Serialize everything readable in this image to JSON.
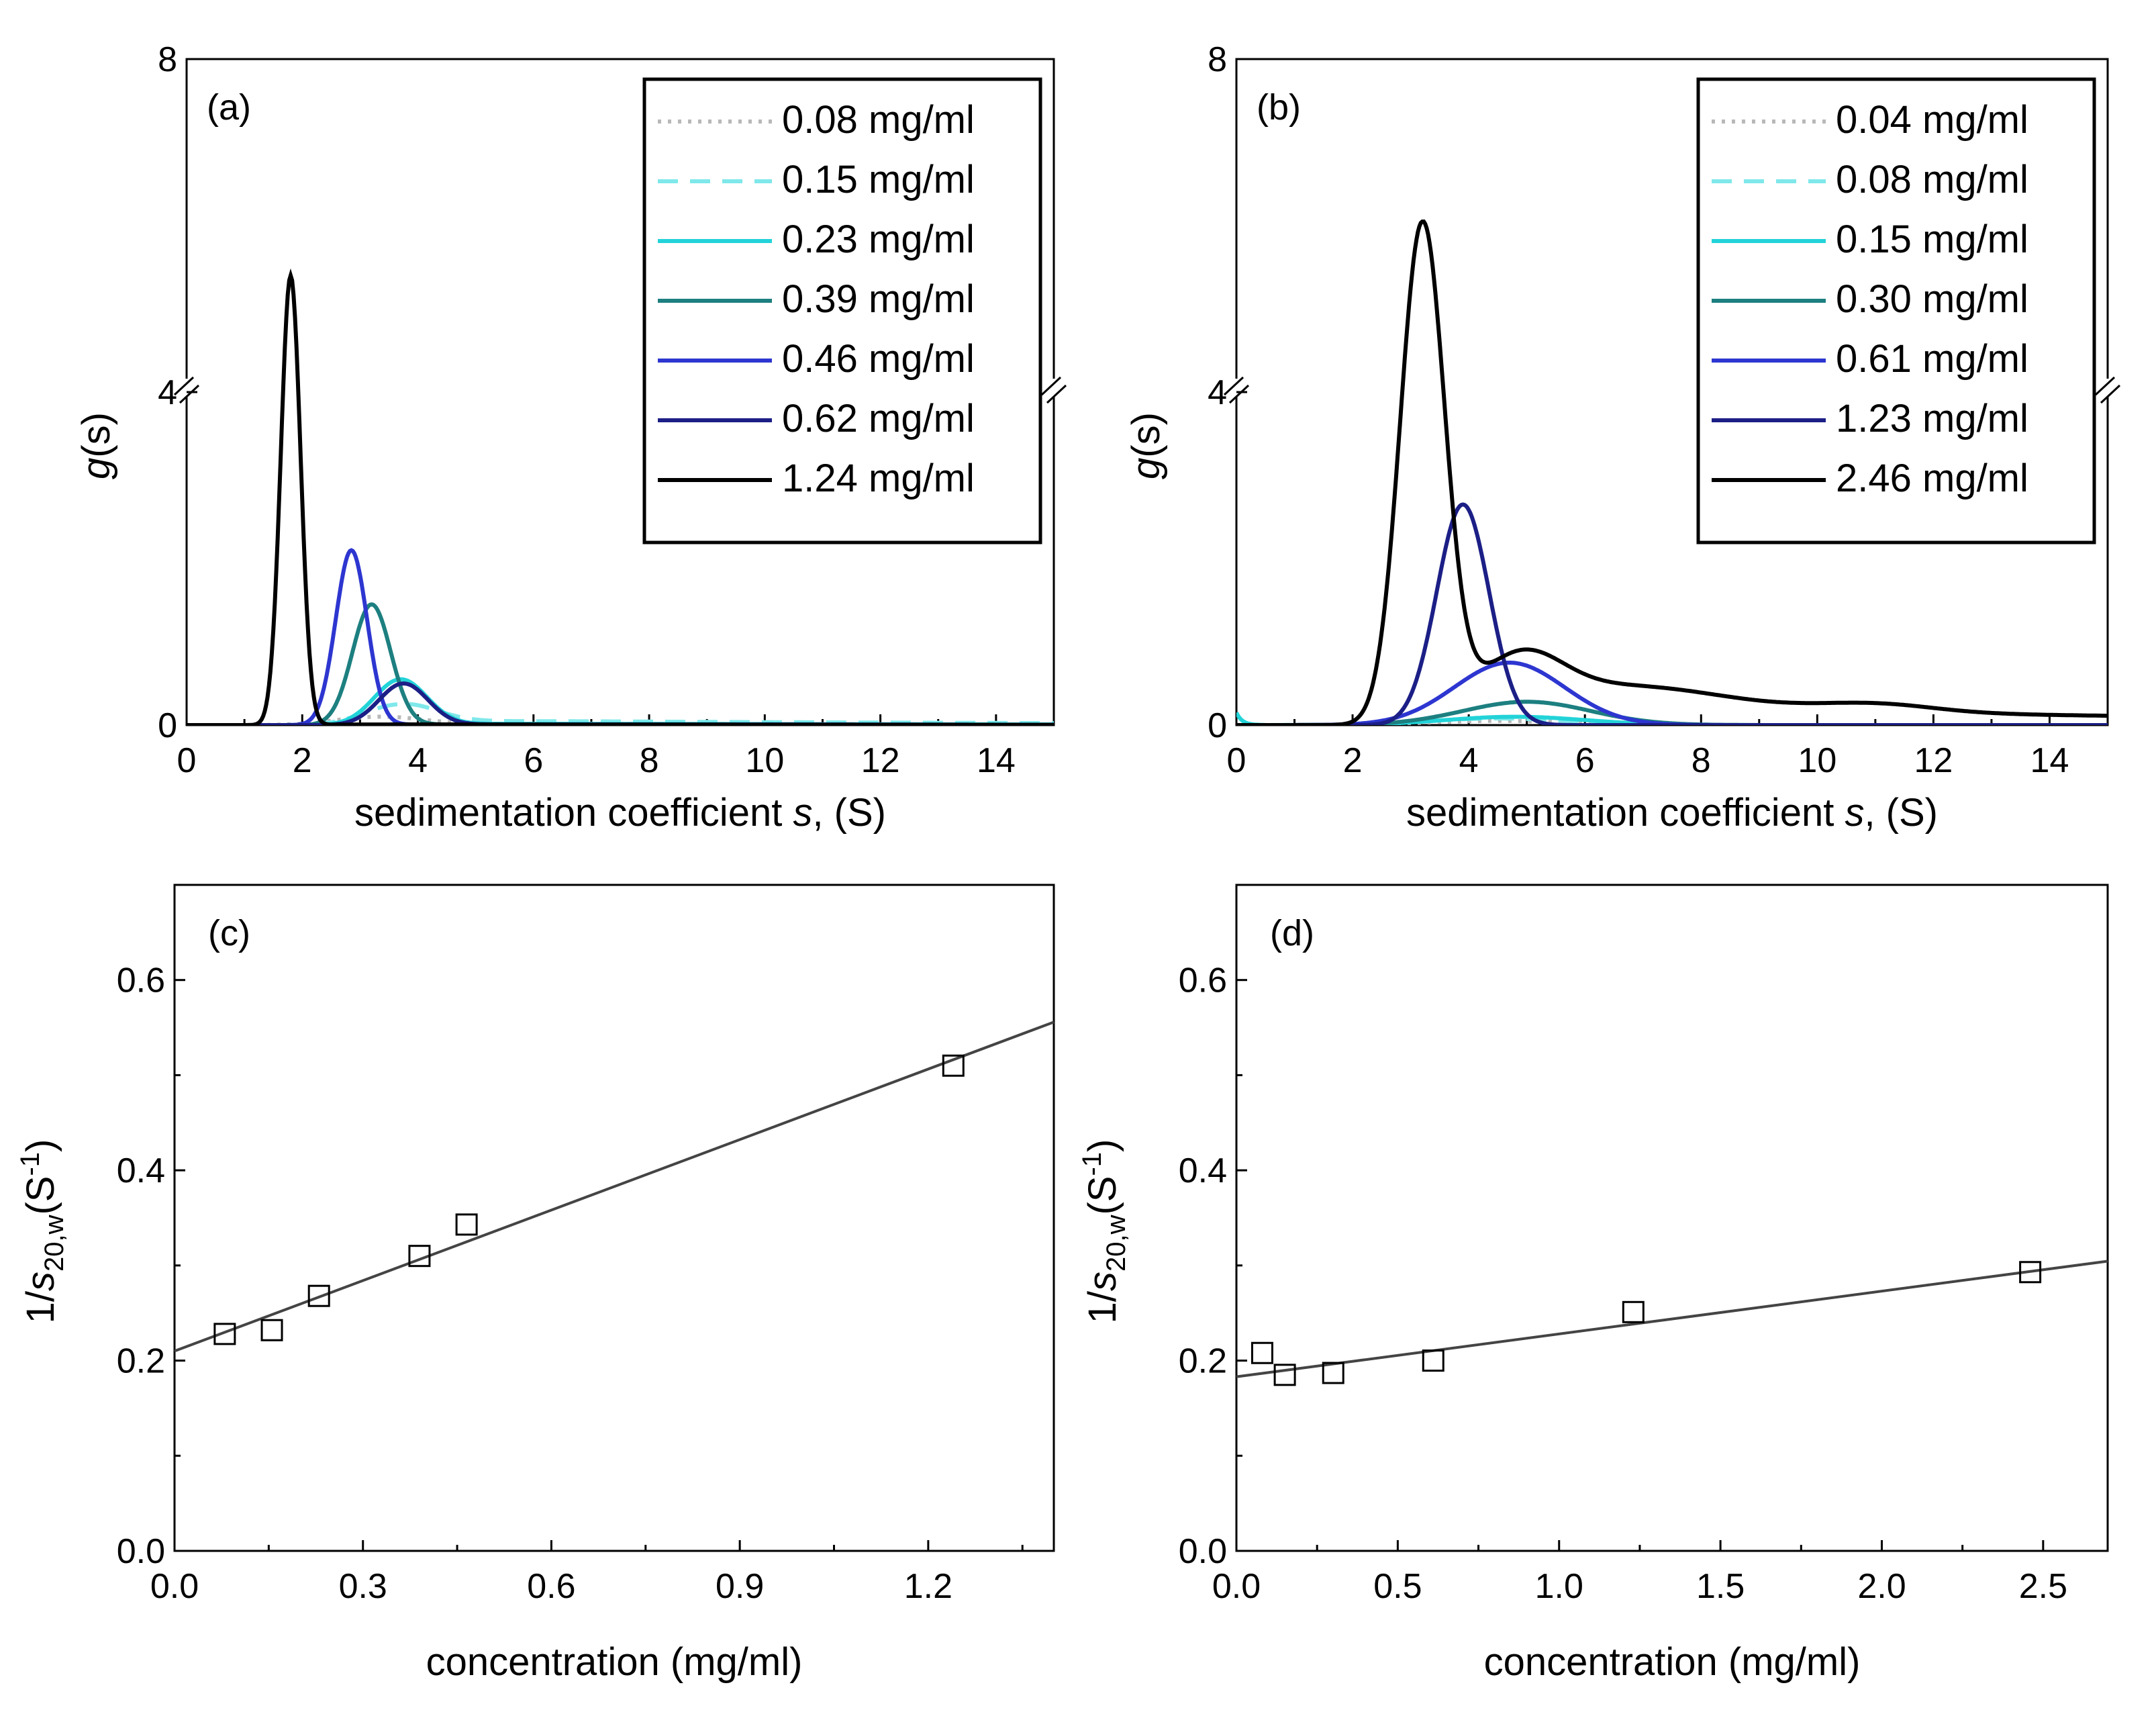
{
  "colors": {
    "c1": "#b8b8b8",
    "c2": "#7fe8ea",
    "c3": "#22d3d8",
    "c4": "#1d7f80",
    "c5": "#2d36d0",
    "c6": "#1c1f86",
    "c7": "#000000",
    "fit": "#444444"
  },
  "chart_data": [
    {
      "id": "a",
      "type": "line",
      "panel_label": "(a)",
      "xlabel_prefix": "sedimentation coefficient ",
      "xlabel_var": "s",
      "xlabel_suffix": ", (S)",
      "ylabel_var": "g",
      "ylabel_suffix": "(s)",
      "xlim": [
        0,
        15
      ],
      "ylim": [
        0,
        8
      ],
      "axis_break": 4,
      "xticks": [
        0,
        2,
        4,
        6,
        8,
        10,
        12,
        14
      ],
      "yticks": [
        0,
        4,
        8
      ],
      "legend_position": "top-right",
      "series": [
        {
          "name": "0.08 mg/ml",
          "style": "dotted",
          "color": "#b8b8b8",
          "peak": 3.3,
          "width": 0.7,
          "height": 0.1,
          "tail": 0.02
        },
        {
          "name": "0.15 mg/ml",
          "style": "dashed",
          "color": "#7fe8ea",
          "peak": 3.7,
          "width": 0.6,
          "height": 0.25,
          "tail": 0.06
        },
        {
          "name": "0.23 mg/ml",
          "style": "solid",
          "color": "#22d3d8",
          "peak": 3.7,
          "width": 0.45,
          "height": 0.55,
          "tail": 0.02
        },
        {
          "name": "0.39 mg/ml",
          "style": "solid",
          "color": "#1d7f80",
          "peak": 3.2,
          "width": 0.33,
          "height": 1.45,
          "tail": 0.01
        },
        {
          "name": "0.46 mg/ml",
          "style": "solid",
          "color": "#2d36d0",
          "peak": 2.85,
          "width": 0.27,
          "height": 2.1,
          "tail": 0.01
        },
        {
          "name": "0.62 mg/ml",
          "style": "solid",
          "color": "#1c1f86",
          "peak": 3.75,
          "width": 0.42,
          "height": 0.5,
          "tail": 0.01
        },
        {
          "name": "1.24 mg/ml",
          "style": "solid",
          "color": "#000000",
          "peak": 1.8,
          "width": 0.17,
          "height": 5.4,
          "tail": 0.01
        }
      ]
    },
    {
      "id": "b",
      "type": "line",
      "panel_label": "(b)",
      "xlabel_prefix": "sedimentation coefficient ",
      "xlabel_var": "s",
      "xlabel_suffix": ", (S)",
      "ylabel_var": "g",
      "ylabel_suffix": "(s)",
      "xlim": [
        0,
        15
      ],
      "ylim": [
        0,
        8
      ],
      "axis_break": 4,
      "xticks": [
        0,
        2,
        4,
        6,
        8,
        10,
        12,
        14
      ],
      "yticks": [
        0,
        4,
        8
      ],
      "legend_position": "top-right",
      "series": [
        {
          "name": "0.04 mg/ml",
          "style": "dotted",
          "color": "#b8b8b8",
          "peak": 4.5,
          "width": 1.2,
          "height": 0.05,
          "tail": 0.0
        },
        {
          "name": "0.08 mg/ml",
          "style": "dashed",
          "color": "#7fe8ea",
          "peak": 4.5,
          "width": 1.2,
          "height": 0.08,
          "tail": 0.0
        },
        {
          "name": "0.15 mg/ml",
          "style": "solid",
          "color": "#22d3d8",
          "peak": 4.8,
          "width": 1.2,
          "height": 0.1,
          "tail": 0.0
        },
        {
          "name": "0.30 mg/ml",
          "style": "solid",
          "color": "#1d7f80",
          "peak": 5.0,
          "width": 1.1,
          "height": 0.28,
          "tail": 0.0
        },
        {
          "name": "0.61 mg/ml",
          "style": "solid",
          "color": "#2d36d0",
          "peak": 4.7,
          "width": 0.95,
          "height": 0.75,
          "tail": 0.0
        },
        {
          "name": "1.23 mg/ml",
          "style": "solid",
          "color": "#1c1f86",
          "peak": 3.9,
          "width": 0.45,
          "height": 2.65,
          "tail": 0.0
        },
        {
          "name": "2.46 mg/ml",
          "style": "solid",
          "color": "#000000",
          "peak": 3.2,
          "width": 0.38,
          "height": 6.0,
          "tail": 0.3
        }
      ]
    },
    {
      "id": "c",
      "type": "scatter",
      "panel_label": "(c)",
      "xlabel": "concentration (mg/ml)",
      "ylabel_prefix": "1/",
      "ylabel_var": "s",
      "ylabel_sub": "20,w",
      "ylabel_unit": "(S",
      "ylabel_sup": "-1",
      "ylabel_close": ")",
      "xlim": [
        0,
        1.4
      ],
      "ylim": [
        0,
        0.7
      ],
      "xticks": [
        "0.0",
        "0.3",
        "0.6",
        "0.9",
        "1.2"
      ],
      "yticks": [
        "0.0",
        "0.2",
        "0.4",
        "0.6"
      ],
      "x": [
        0.08,
        0.155,
        0.23,
        0.39,
        0.465,
        1.24
      ],
      "y": [
        0.228,
        0.232,
        0.268,
        0.31,
        0.343,
        0.51
      ],
      "fit": {
        "intercept": 0.21,
        "slope": 0.247
      }
    },
    {
      "id": "d",
      "type": "scatter",
      "panel_label": "(d)",
      "xlabel": "concentration (mg/ml)",
      "ylabel_prefix": "1/",
      "ylabel_var": "s",
      "ylabel_sub": "20,w",
      "ylabel_unit": "(S",
      "ylabel_sup": "-1",
      "ylabel_close": ")",
      "xlim": [
        0,
        2.7
      ],
      "ylim": [
        0,
        0.7
      ],
      "xticks": [
        "0.0",
        "0.5",
        "1.0",
        "1.5",
        "2.0",
        "2.5"
      ],
      "yticks": [
        "0.0",
        "0.2",
        "0.4",
        "0.6"
      ],
      "x": [
        0.08,
        0.15,
        0.3,
        0.61,
        1.23,
        2.46
      ],
      "y": [
        0.208,
        0.185,
        0.187,
        0.2,
        0.251,
        0.293
      ],
      "fit": {
        "intercept": 0.183,
        "slope": 0.045
      }
    }
  ]
}
